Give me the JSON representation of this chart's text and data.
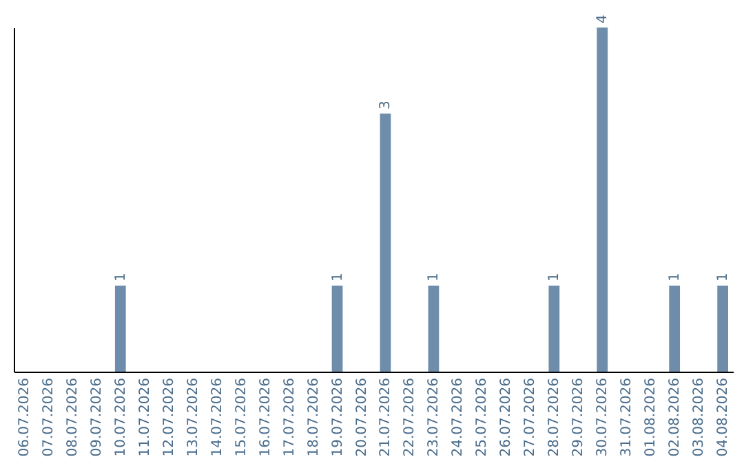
{
  "chart_data": {
    "type": "bar",
    "categories": [
      "06.07.2026",
      "07.07.2026",
      "08.07.2026",
      "09.07.2026",
      "10.07.2026",
      "11.07.2026",
      "12.07.2026",
      "13.07.2026",
      "14.07.2026",
      "15.07.2026",
      "16.07.2026",
      "17.07.2026",
      "18.07.2026",
      "19.07.2026",
      "20.07.2026",
      "21.07.2026",
      "22.07.2026",
      "23.07.2026",
      "24.07.2026",
      "25.07.2026",
      "26.07.2026",
      "27.07.2026",
      "28.07.2026",
      "29.07.2026",
      "30.07.2026",
      "31.07.2026",
      "01.08.2026",
      "02.08.2026",
      "03.08.2026",
      "04.08.2026"
    ],
    "values": [
      0,
      0,
      0,
      0,
      1,
      0,
      0,
      0,
      0,
      0,
      0,
      0,
      0,
      1,
      0,
      3,
      0,
      1,
      0,
      0,
      0,
      0,
      1,
      0,
      4,
      0,
      0,
      1,
      0,
      1
    ],
    "value_labels": [
      null,
      null,
      null,
      null,
      "1",
      null,
      null,
      null,
      null,
      null,
      null,
      null,
      null,
      "1",
      null,
      "3",
      null,
      "1",
      null,
      null,
      null,
      null,
      "1",
      null,
      "4",
      null,
      null,
      "1",
      null,
      "1"
    ],
    "color": "#6d8dab"
  }
}
